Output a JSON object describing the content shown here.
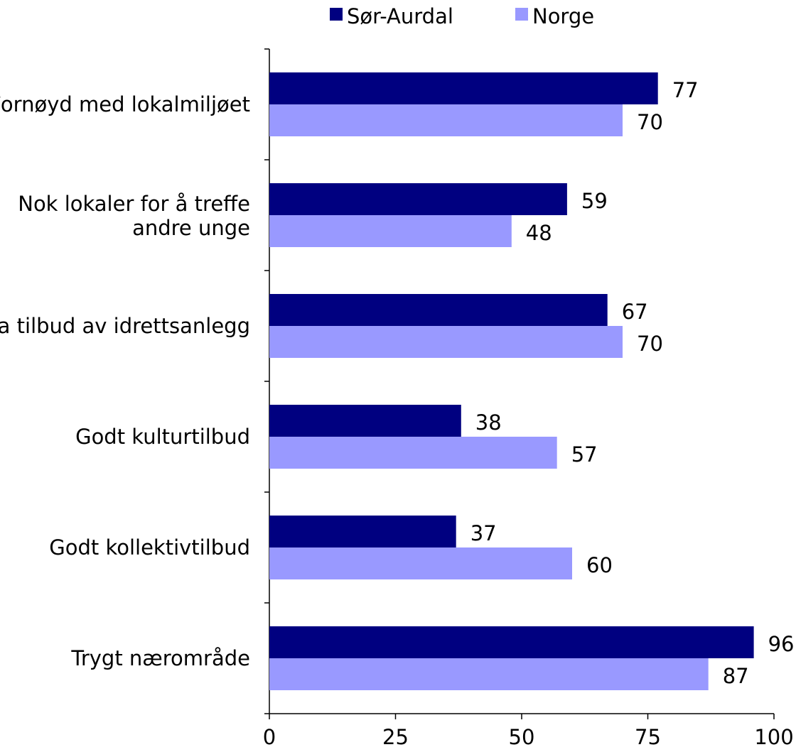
{
  "chart_data": {
    "type": "bar",
    "orientation": "horizontal",
    "categories": [
      [
        "Fornøyd med lokalmiljøet"
      ],
      [
        "Nok lokaler for å treffe",
        "andre unge"
      ],
      [
        "Bra tilbud av idrettsanlegg"
      ],
      [
        "Godt kulturtilbud"
      ],
      [
        "Godt kollektivtilbud"
      ],
      [
        "Trygt nærområde"
      ]
    ],
    "series": [
      {
        "name": "Sør-Aurdal",
        "color": "#000080",
        "values": [
          77,
          59,
          67,
          38,
          37,
          96
        ]
      },
      {
        "name": "Norge",
        "color": "#9999FF",
        "values": [
          70,
          48,
          70,
          57,
          60,
          87
        ]
      }
    ],
    "x_ticks": [
      "0",
      "25",
      "50",
      "75",
      "100"
    ],
    "xlim": [
      0,
      100
    ],
    "grid": false,
    "legend_position": "top"
  }
}
